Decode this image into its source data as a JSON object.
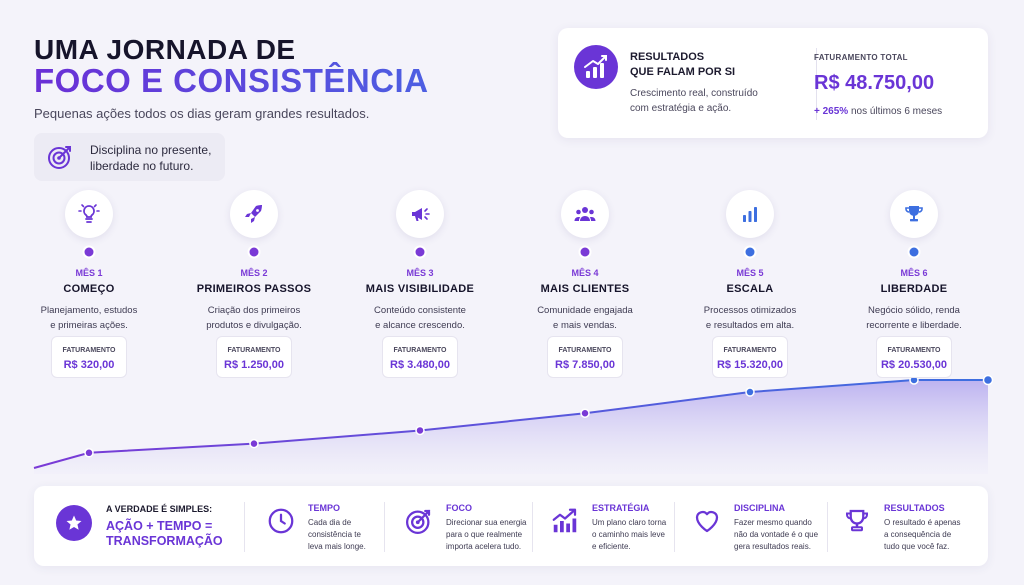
{
  "header": {
    "title_line1": "UMA JORNADA DE",
    "title_line2": "FOCO E CONSISTÊNCIA",
    "subtitle": "Pequenas ações todos os dias geram grandes resultados."
  },
  "tip": {
    "icon": "target-icon",
    "text": "Disciplina no presente, liberdade no futuro."
  },
  "results": {
    "icon": "chart-up-icon",
    "title_line1": "RESULTADOS",
    "title_line2": "QUE FALAM POR SI",
    "desc_line1": "Crescimento real, construído",
    "desc_line2": "com estratégia e ação.",
    "revenue_label": "FATURAMENTO TOTAL",
    "revenue_value": "R$ 48.750,00",
    "growth_value": "+ 265%",
    "growth_text": "nos últimos 6 meses"
  },
  "steps": [
    {
      "icon": "lightbulb-icon",
      "month": "MÊS 1",
      "name": "COMEÇO",
      "desc_line1": "Planejamento, estudos",
      "desc_line2": "e primeiras ações.",
      "fat_label": "FATURAMENTO",
      "fat_value": "R$ 320,00"
    },
    {
      "icon": "rocket-icon",
      "month": "MÊS 2",
      "name": "PRIMEIROS PASSOS",
      "desc_line1": "Criação dos primeiros",
      "desc_line2": "produtos e divulgação.",
      "fat_label": "FATURAMENTO",
      "fat_value": "R$ 1.250,00"
    },
    {
      "icon": "megaphone-icon",
      "month": "MÊS 3",
      "name": "MAIS VISIBILIDADE",
      "desc_line1": "Conteúdo consistente",
      "desc_line2": "e alcance crescendo.",
      "fat_label": "FATURAMENTO",
      "fat_value": "R$ 3.480,00"
    },
    {
      "icon": "people-icon",
      "month": "MÊS 4",
      "name": "MAIS CLIENTES",
      "desc_line1": "Comunidade engajada",
      "desc_line2": "e mais vendas.",
      "fat_label": "FATURAMENTO",
      "fat_value": "R$ 7.850,00"
    },
    {
      "icon": "bar-chart-icon",
      "month": "MÊS 5",
      "name": "ESCALA",
      "desc_line1": "Processos otimizados",
      "desc_line2": "e resultados em alta.",
      "fat_label": "FATURAMENTO",
      "fat_value": "R$ 15.320,00"
    },
    {
      "icon": "trophy-icon",
      "month": "MÊS 6",
      "name": "LIBERDADE",
      "desc_line1": "Negócio sólido, renda",
      "desc_line2": "recorrente e liberdade.",
      "fat_label": "FATURAMENTO",
      "fat_value": "R$ 20.530,00"
    }
  ],
  "growth_curve": [
    320,
    1250,
    3480,
    7850,
    15320,
    20530
  ],
  "bottom": {
    "truth": "A VERDADE É SIMPLES:",
    "equation_line1": "AÇÃO + TEMPO =",
    "equation_line2": "TRANSFORMAÇÃO",
    "pillars": [
      {
        "icon": "clock-icon",
        "title": "TEMPO",
        "l1": "Cada dia de",
        "l2": "consistência te",
        "l3": "leva mais longe."
      },
      {
        "icon": "target-icon",
        "title": "FOCO",
        "l1": "Direcionar sua energia",
        "l2": "para o que realmente",
        "l3": "importa acelera tudo."
      },
      {
        "icon": "growth-icon",
        "title": "ESTRATÉGIA",
        "l1": "Um plano claro torna",
        "l2": "o caminho mais leve",
        "l3": "e eficiente."
      },
      {
        "icon": "heart-icon",
        "title": "DISCIPLINA",
        "l1": "Fazer mesmo quando",
        "l2": "não da vontade é o que",
        "l3": "gera resultados reais."
      },
      {
        "icon": "trophy-icon",
        "title": "RESULTADOS",
        "l1": "O resultado é apenas",
        "l2": "a consequência de",
        "l3": "tudo que você faz."
      }
    ]
  },
  "colors": {
    "purple": "#6a35d6",
    "blue": "#3d6fe0"
  }
}
